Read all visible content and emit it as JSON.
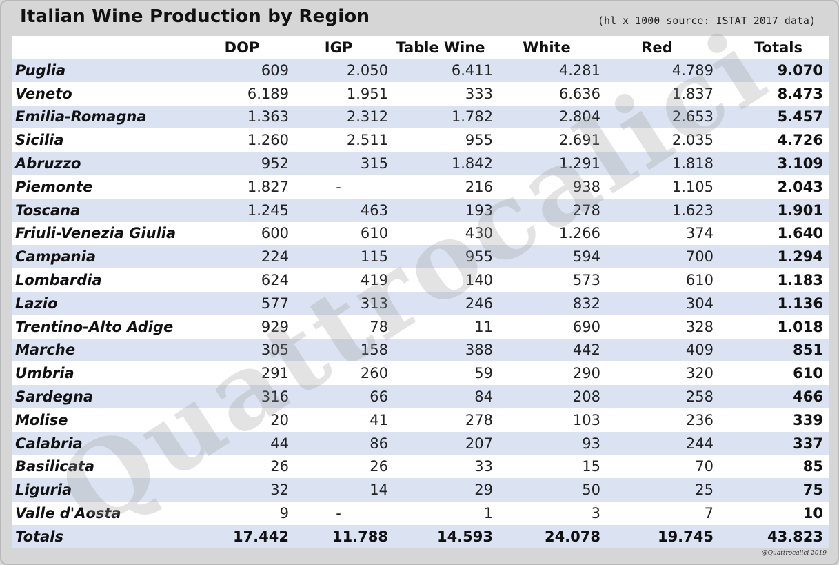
{
  "title": "Italian Wine Production by Region",
  "subtitle": "(hl x 1000 source: ISTAT 2017 data)",
  "watermark": "Quattrocalici",
  "credit": "@Quattrocalici 2019",
  "colors": {
    "row_stripe": "#dbe3f2",
    "row_plain": "#ffffff",
    "frame": "#d6d6d6"
  },
  "chart_data": {
    "type": "table",
    "title": "Italian Wine Production by Region",
    "subtitle": "(hl x 1000 source: ISTAT 2017 data)",
    "columns": [
      "",
      "DOP",
      "IGP",
      "Table Wine",
      "White",
      "Red",
      "Totals"
    ],
    "rows": [
      {
        "region": "Puglia",
        "dop": "609",
        "igp": "2.050",
        "table_wine": "6.411",
        "white": "4.281",
        "red": "4.789",
        "totals": "9.070"
      },
      {
        "region": "Veneto",
        "dop": "6.189",
        "igp": "1.951",
        "table_wine": "333",
        "white": "6.636",
        "red": "1.837",
        "totals": "8.473"
      },
      {
        "region": "Emilia-Romagna",
        "dop": "1.363",
        "igp": "2.312",
        "table_wine": "1.782",
        "white": "2.804",
        "red": "2.653",
        "totals": "5.457"
      },
      {
        "region": "Sicilia",
        "dop": "1.260",
        "igp": "2.511",
        "table_wine": "955",
        "white": "2.691",
        "red": "2.035",
        "totals": "4.726"
      },
      {
        "region": "Abruzzo",
        "dop": "952",
        "igp": "315",
        "table_wine": "1.842",
        "white": "1.291",
        "red": "1.818",
        "totals": "3.109"
      },
      {
        "region": "Piemonte",
        "dop": "1.827",
        "igp": "-",
        "table_wine": "216",
        "white": "938",
        "red": "1.105",
        "totals": "2.043"
      },
      {
        "region": "Toscana",
        "dop": "1.245",
        "igp": "463",
        "table_wine": "193",
        "white": "278",
        "red": "1.623",
        "totals": "1.901"
      },
      {
        "region": "Friuli-Venezia Giulia",
        "dop": "600",
        "igp": "610",
        "table_wine": "430",
        "white": "1.266",
        "red": "374",
        "totals": "1.640"
      },
      {
        "region": "Campania",
        "dop": "224",
        "igp": "115",
        "table_wine": "955",
        "white": "594",
        "red": "700",
        "totals": "1.294"
      },
      {
        "region": "Lombardia",
        "dop": "624",
        "igp": "419",
        "table_wine": "140",
        "white": "573",
        "red": "610",
        "totals": "1.183"
      },
      {
        "region": "Lazio",
        "dop": "577",
        "igp": "313",
        "table_wine": "246",
        "white": "832",
        "red": "304",
        "totals": "1.136"
      },
      {
        "region": "Trentino-Alto Adige",
        "dop": "929",
        "igp": "78",
        "table_wine": "11",
        "white": "690",
        "red": "328",
        "totals": "1.018"
      },
      {
        "region": "Marche",
        "dop": "305",
        "igp": "158",
        "table_wine": "388",
        "white": "442",
        "red": "409",
        "totals": "851"
      },
      {
        "region": "Umbria",
        "dop": "291",
        "igp": "260",
        "table_wine": "59",
        "white": "290",
        "red": "320",
        "totals": "610"
      },
      {
        "region": "Sardegna",
        "dop": "316",
        "igp": "66",
        "table_wine": "84",
        "white": "208",
        "red": "258",
        "totals": "466"
      },
      {
        "region": "Molise",
        "dop": "20",
        "igp": "41",
        "table_wine": "278",
        "white": "103",
        "red": "236",
        "totals": "339"
      },
      {
        "region": "Calabria",
        "dop": "44",
        "igp": "86",
        "table_wine": "207",
        "white": "93",
        "red": "244",
        "totals": "337"
      },
      {
        "region": "Basilicata",
        "dop": "26",
        "igp": "26",
        "table_wine": "33",
        "white": "15",
        "red": "70",
        "totals": "85"
      },
      {
        "region": "Liguria",
        "dop": "32",
        "igp": "14",
        "table_wine": "29",
        "white": "50",
        "red": "25",
        "totals": "75"
      },
      {
        "region": "Valle d'Aosta",
        "dop": "9",
        "igp": "-",
        "table_wine": "1",
        "white": "3",
        "red": "7",
        "totals": "10"
      }
    ],
    "totals_row": {
      "region": "Totals",
      "dop": "17.442",
      "igp": "11.788",
      "table_wine": "14.593",
      "white": "24.078",
      "red": "19.745",
      "totals": "43.823"
    }
  }
}
